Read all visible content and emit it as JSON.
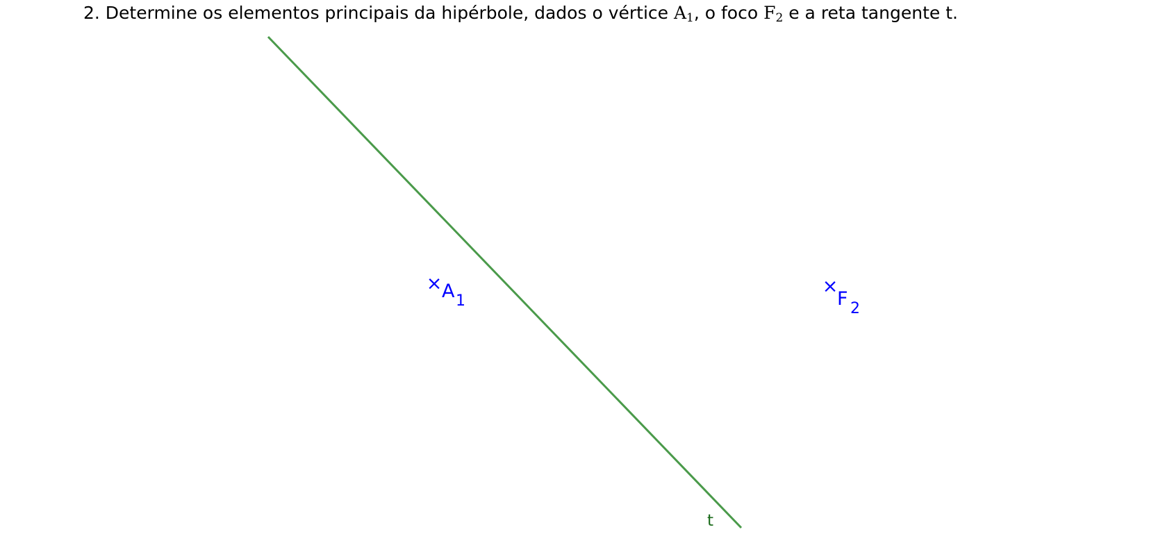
{
  "problem": {
    "prefix": "2. Determine os elementos principais da hipérbole, dados o vértice ",
    "vertex_letter": "A",
    "vertex_index": "1",
    "middle": ", o foco ",
    "focus_letter": "F",
    "focus_index": "2",
    "suffix": " e a reta tangente t."
  },
  "figure": {
    "points": [
      {
        "letter": "A",
        "index": "1",
        "marker": "×",
        "color": "#0000ff"
      },
      {
        "letter": "F",
        "index": "2",
        "marker": "×",
        "color": "#0000ff"
      }
    ],
    "line": {
      "label": "t",
      "color": "#4a9a4a",
      "label_color": "#1a6a1a"
    }
  }
}
